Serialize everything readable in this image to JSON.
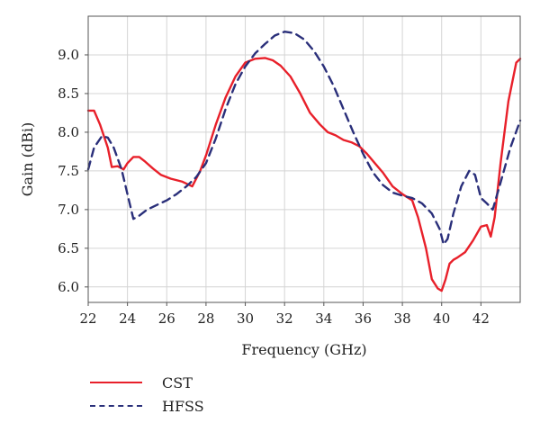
{
  "chart_data": {
    "type": "line",
    "xlabel": "Frequency (GHz)",
    "ylabel": "Gain (dBi)",
    "xlim": [
      22,
      44
    ],
    "ylim": [
      5.8,
      9.5
    ],
    "xticks": [
      22,
      24,
      26,
      28,
      30,
      32,
      34,
      36,
      38,
      40,
      42
    ],
    "yticks": [
      6.0,
      6.5,
      7.0,
      7.5,
      8.0,
      8.5,
      9.0
    ],
    "grid": true,
    "legend_position": "bottom-left",
    "series": [
      {
        "name": "CST",
        "color": "#e8202a",
        "style": "solid",
        "x": [
          22,
          22.3,
          22.6,
          23.0,
          23.2,
          23.5,
          23.8,
          24.0,
          24.3,
          24.6,
          24.9,
          25.3,
          25.7,
          26.2,
          26.8,
          27.3,
          27.7,
          28.0,
          28.5,
          29.0,
          29.5,
          30.0,
          30.5,
          31.0,
          31.4,
          31.8,
          32.3,
          32.8,
          33.3,
          33.8,
          34.2,
          34.6,
          35.0,
          35.4,
          35.8,
          36.2,
          36.6,
          37.0,
          37.5,
          38.0,
          38.5,
          38.8,
          39.2,
          39.5,
          39.8,
          40.0,
          40.2,
          40.4,
          40.6,
          40.8,
          41.2,
          41.6,
          42.0,
          42.3,
          42.5,
          42.7,
          43.0,
          43.4,
          43.8,
          44.0
        ],
        "y": [
          8.28,
          8.28,
          8.1,
          7.8,
          7.55,
          7.56,
          7.52,
          7.6,
          7.68,
          7.68,
          7.62,
          7.53,
          7.45,
          7.4,
          7.36,
          7.3,
          7.5,
          7.7,
          8.1,
          8.45,
          8.72,
          8.9,
          8.95,
          8.96,
          8.93,
          8.86,
          8.72,
          8.5,
          8.25,
          8.1,
          8.0,
          7.96,
          7.9,
          7.87,
          7.82,
          7.72,
          7.6,
          7.48,
          7.3,
          7.2,
          7.12,
          6.9,
          6.5,
          6.1,
          5.98,
          5.95,
          6.1,
          6.3,
          6.35,
          6.38,
          6.45,
          6.6,
          6.78,
          6.8,
          6.65,
          6.9,
          7.6,
          8.4,
          8.9,
          8.95
        ]
      },
      {
        "name": "HFSS",
        "color": "#2a2f7a",
        "style": "dashed",
        "x": [
          22,
          22.3,
          22.7,
          23.0,
          23.3,
          23.7,
          24.0,
          24.3,
          24.6,
          25.0,
          25.5,
          26.0,
          26.5,
          27.0,
          27.5,
          28.0,
          28.5,
          29.0,
          29.5,
          30.0,
          30.5,
          31.0,
          31.5,
          32.0,
          32.5,
          33.0,
          33.5,
          34.0,
          34.5,
          35.0,
          35.5,
          36.0,
          36.5,
          37.0,
          37.5,
          38.0,
          38.5,
          39.0,
          39.5,
          39.9,
          40.1,
          40.3,
          40.6,
          41.0,
          41.4,
          41.7,
          42.0,
          42.3,
          42.6,
          43.0,
          43.5,
          44.0
        ],
        "y": [
          7.52,
          7.8,
          7.95,
          7.93,
          7.8,
          7.52,
          7.2,
          6.88,
          6.92,
          7.0,
          7.06,
          7.12,
          7.2,
          7.3,
          7.42,
          7.6,
          7.92,
          8.3,
          8.62,
          8.85,
          9.02,
          9.14,
          9.25,
          9.3,
          9.28,
          9.2,
          9.05,
          8.85,
          8.6,
          8.3,
          8.0,
          7.72,
          7.48,
          7.32,
          7.22,
          7.18,
          7.15,
          7.08,
          6.95,
          6.75,
          6.55,
          6.62,
          6.95,
          7.3,
          7.5,
          7.45,
          7.15,
          7.08,
          7.0,
          7.35,
          7.8,
          8.15
        ]
      }
    ]
  }
}
